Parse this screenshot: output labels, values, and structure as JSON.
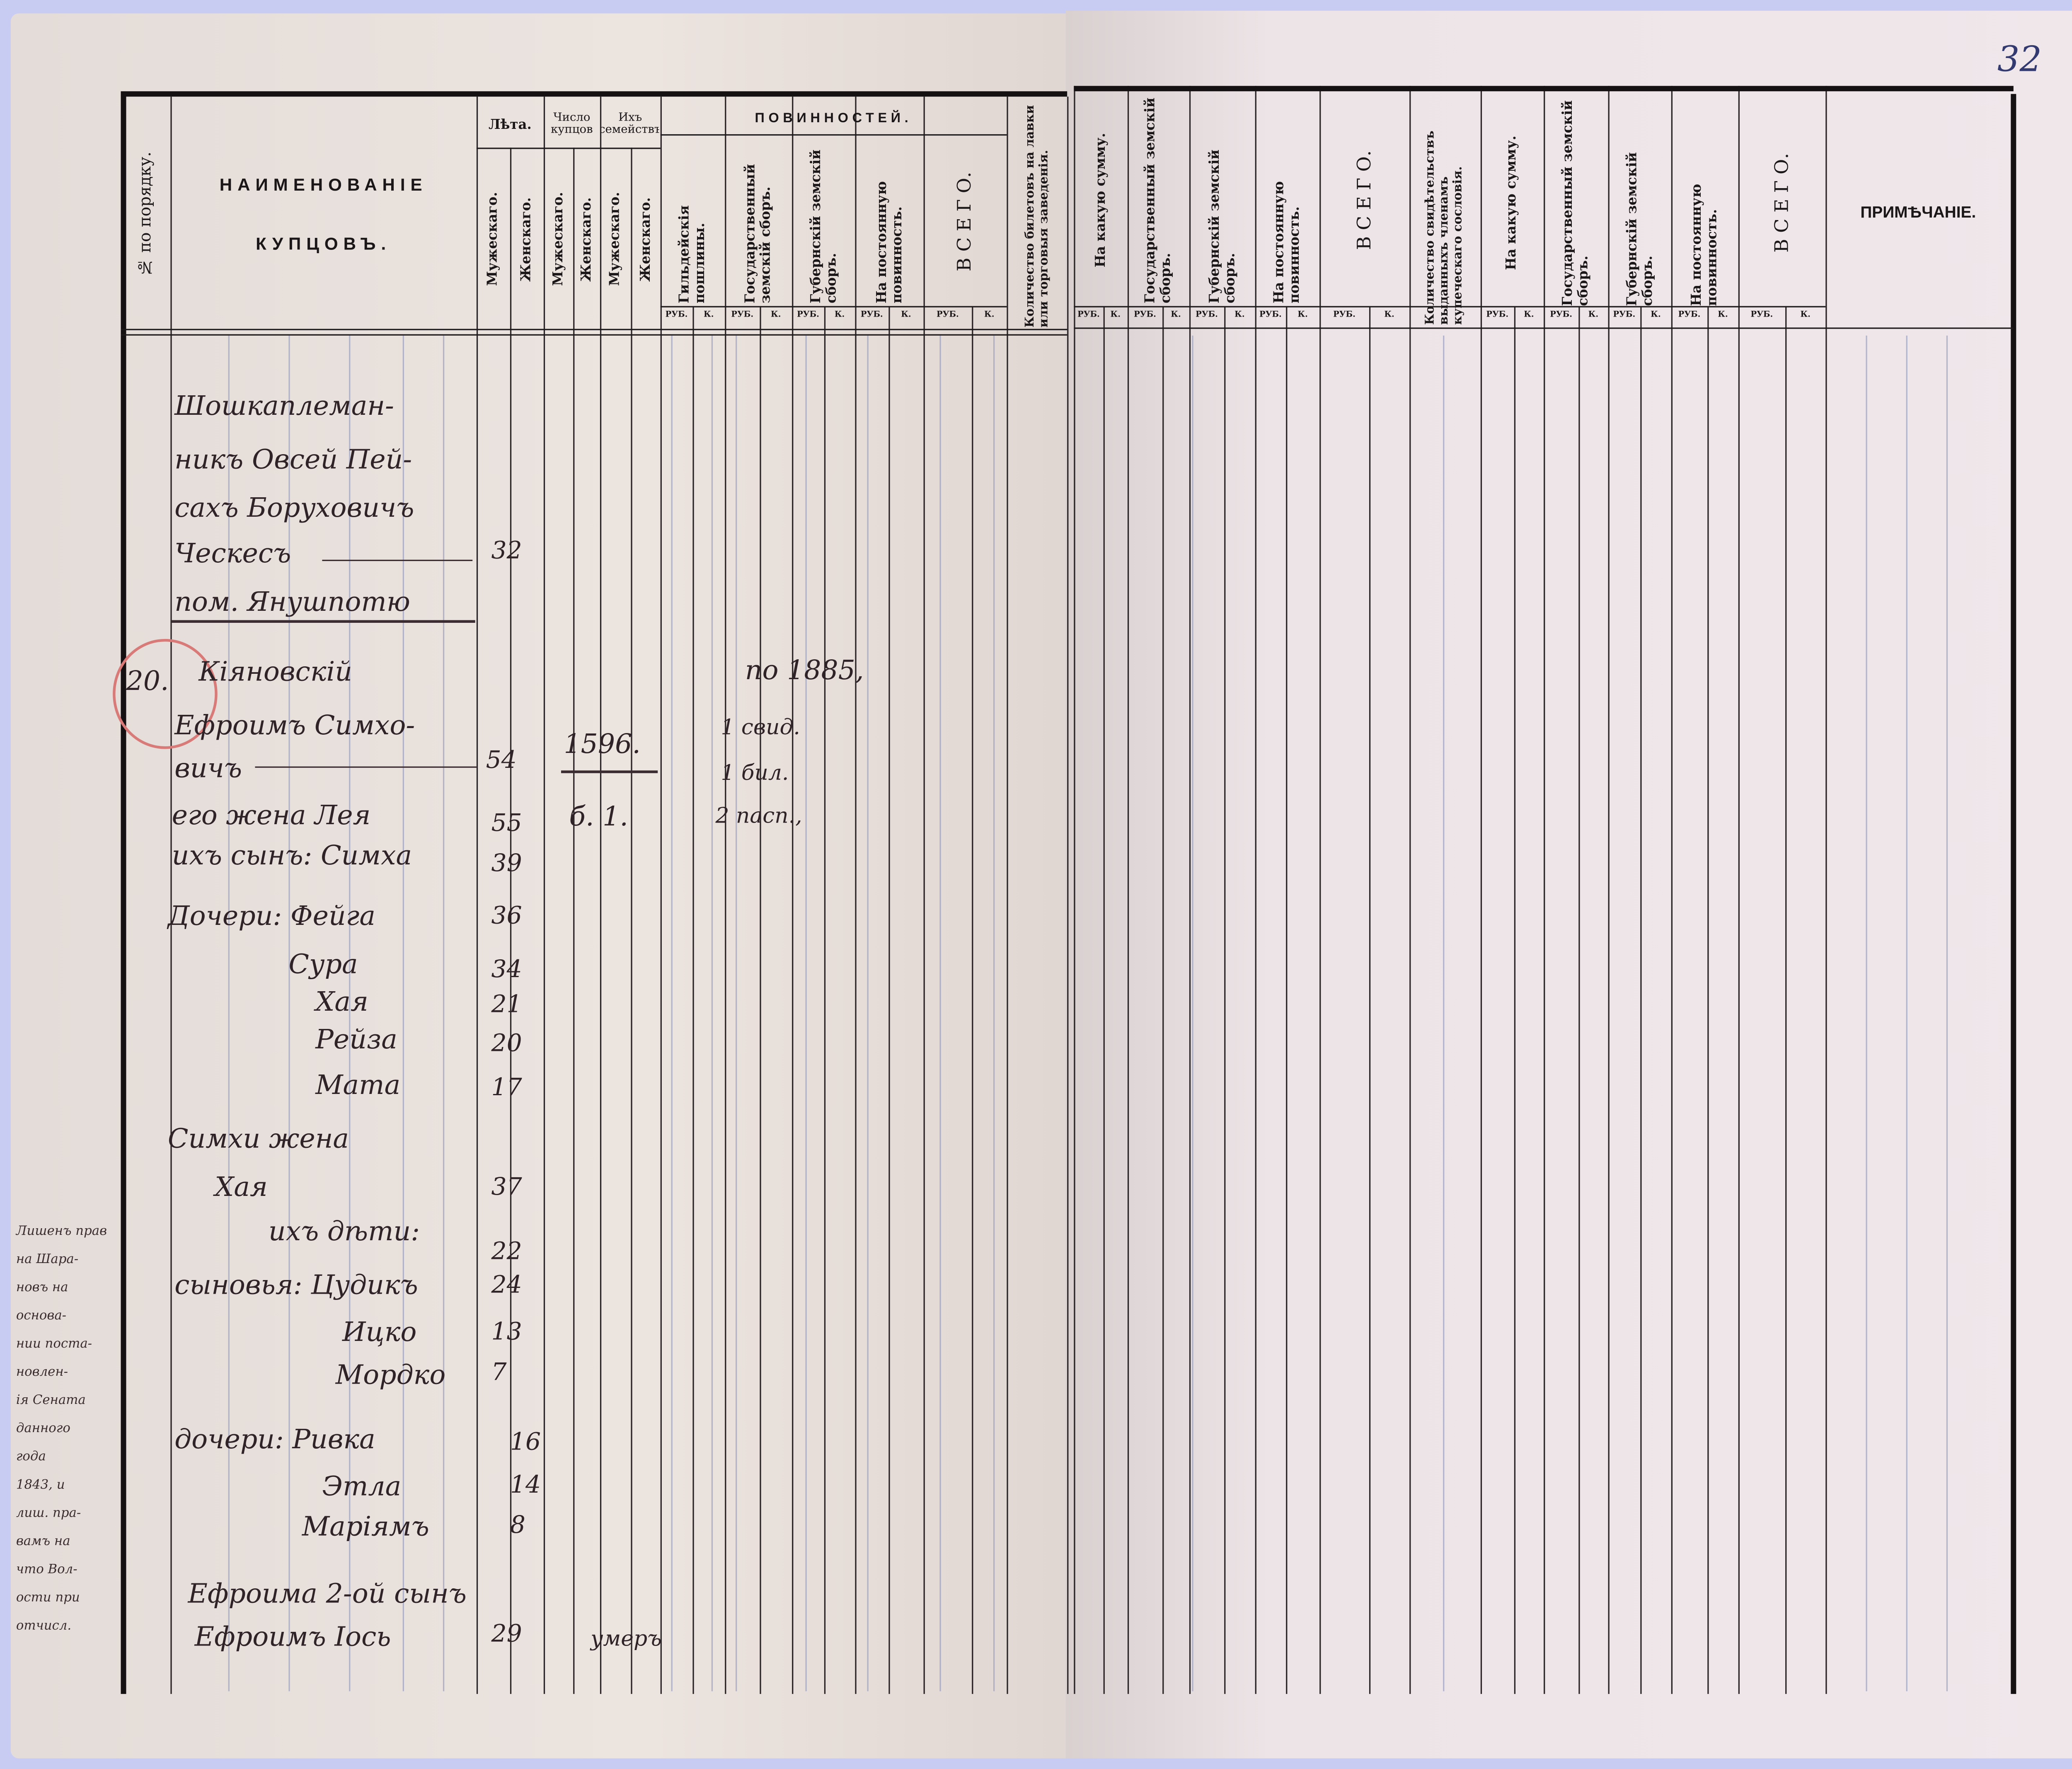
{
  "page_number": "32",
  "left_header": {
    "order_no": "№ по порядку.",
    "name_line1": "НАИМЕНОВАНІЕ",
    "name_line2": "КУПЦОВЪ.",
    "years": "Лѣта.",
    "merchant_count": "Число купцов",
    "families": "Ихъ семействъ",
    "duties": "ПОВИННОСТЕЙ.",
    "male": "Мужескаго.",
    "female": "Женскаго.",
    "guild_fees": "Гильдейскія пошлины.",
    "state_levy": "Государственный земскій сборъ.",
    "provincial_levy": "Губернскій земскій сборъ.",
    "permanent_duty": "На постоянную повинность.",
    "total": "В С Е Г О.",
    "tickets": "Количество билетовъ на лавки или торговыя заведенія."
  },
  "right_header": {
    "sum": "На какую сумму.",
    "state_levy": "Государственный земскій сборъ.",
    "provincial_levy": "Губернскій земскій сборъ.",
    "permanent_duty": "На постоянную повинность.",
    "total": "В С Е Г О.",
    "certificates": "Количество свидѣтельствъ выданныхъ членамъ купеческаго сословія.",
    "sum2": "На какую сумму.",
    "state_levy2": "Государственный земскій сборъ.",
    "provincial_levy2": "Губернскій земскій сборъ.",
    "permanent_duty2": "На постоянную повинность.",
    "total2": "В С Е Г О.",
    "note": "ПРИМѢЧАНІЕ."
  },
  "units": {
    "rub": "РУБ.",
    "kop": "К."
  },
  "accent_colors": {
    "ink": "#2f2328",
    "red_circle": "#d87a78",
    "paper": "#ece4df",
    "frame": "#c8ccf2"
  },
  "entries": [
    {
      "lines": [
        "Шошкаплеман-",
        "никъ Овсей Пей-",
        "сахъ Борyховичъ",
        "Ческесъ"
      ],
      "age": "32",
      "place": "пом. Янушпотю"
    },
    {
      "number": "20.",
      "lines": [
        "Кіяновскій",
        "Ефроимъ Симхо-",
        "вичъ"
      ],
      "age": "54",
      "guild_amount": "1596.",
      "guild_sub": "б. 1.",
      "tax_year": "по 1885,",
      "documents": [
        "1 свид.",
        "1 бил.",
        "2 пасп.,"
      ]
    }
  ],
  "family": [
    {
      "text": "его жена Лея",
      "age": "55"
    },
    {
      "text": "ихъ сынъ: Симха",
      "age": "39"
    },
    {
      "text": "Дочери: Фейга",
      "age": "36"
    },
    {
      "text": "Сура",
      "age": "34"
    },
    {
      "text": "Хая",
      "age": "21"
    },
    {
      "text": "Рейза",
      "age": "20"
    },
    {
      "text": "Мата",
      "age": "17"
    },
    {
      "text": "Симхи жена",
      "age": ""
    },
    {
      "text": "Хая",
      "age": "37"
    },
    {
      "text": "ихъ дѣти:",
      "age": "22"
    },
    {
      "text": "сыновья: Цудикъ",
      "age": "24"
    },
    {
      "text": "Ицко",
      "age": "13"
    },
    {
      "text": "Мордко",
      "age": "7"
    },
    {
      "text": "дочери: Ривка",
      "age": "16"
    },
    {
      "text": "Этла",
      "age": "14"
    },
    {
      "text": "Марiямъ",
      "age": "8"
    },
    {
      "text": "Ефроима 2-ой сынъ",
      "age": ""
    },
    {
      "text": "Ефроимъ Іось",
      "age": "29",
      "remark": "умеръ"
    }
  ],
  "margin_note": [
    "Лишенъ прав",
    "на Шара-",
    "новъ на",
    "основа-",
    "нии поста-",
    "новлен-",
    "ія Сената",
    "данного",
    "года",
    "1843, и",
    "лиш. пра-",
    "вамъ на",
    "что Вол-",
    "ости при",
    "отчисл."
  ]
}
